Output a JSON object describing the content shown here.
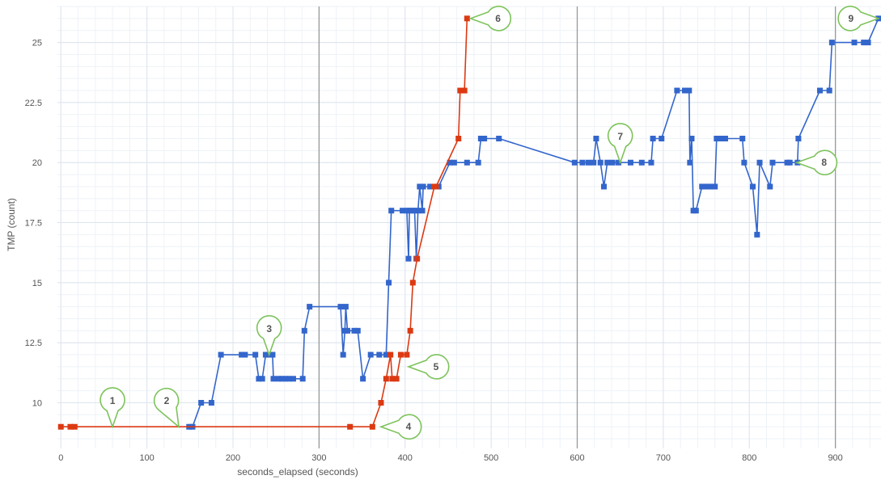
{
  "chart_data": {
    "type": "line",
    "title": "",
    "xlabel": "seconds_elapsed (seconds)",
    "ylabel": "TMP (count)",
    "xlim": [
      -4,
      953
    ],
    "ylim": [
      8.1,
      26.5
    ],
    "x_ticks": [
      0,
      100,
      200,
      300,
      400,
      500,
      600,
      700,
      800,
      900
    ],
    "y_ticks": [
      10,
      12.5,
      15,
      17.5,
      20,
      22.5,
      25
    ],
    "x_major_lines": [
      300,
      600,
      900
    ],
    "grid": true,
    "legend": "none",
    "series": [
      {
        "color": "#3366cc",
        "points": [
          [
            149,
            9
          ],
          [
            153,
            9
          ],
          [
            163,
            10
          ],
          [
            175,
            10
          ],
          [
            186,
            12
          ],
          [
            210,
            12
          ],
          [
            214,
            12
          ],
          [
            226,
            12
          ],
          [
            230,
            11
          ],
          [
            234,
            11
          ],
          [
            238,
            12
          ],
          [
            242,
            12
          ],
          [
            246,
            12
          ],
          [
            247,
            11
          ],
          [
            253,
            11
          ],
          [
            257,
            11
          ],
          [
            261,
            11
          ],
          [
            265,
            11
          ],
          [
            270,
            11
          ],
          [
            281,
            11
          ],
          [
            283,
            13
          ],
          [
            289,
            14
          ],
          [
            325,
            14
          ],
          [
            328,
            12
          ],
          [
            330,
            13
          ],
          [
            331,
            14
          ],
          [
            333,
            13
          ],
          [
            341,
            13
          ],
          [
            345,
            13
          ],
          [
            351,
            11
          ],
          [
            360,
            12
          ],
          [
            370,
            12
          ],
          [
            378,
            12
          ],
          [
            381,
            15
          ],
          [
            384,
            18
          ],
          [
            397,
            18
          ],
          [
            402,
            18
          ],
          [
            404,
            16
          ],
          [
            405,
            18
          ],
          [
            408,
            18
          ],
          [
            411,
            18
          ],
          [
            413,
            16
          ],
          [
            415,
            18
          ],
          [
            417,
            19
          ],
          [
            420,
            18
          ],
          [
            421,
            19
          ],
          [
            429,
            19
          ],
          [
            439,
            19
          ],
          [
            452,
            20
          ],
          [
            457,
            20
          ],
          [
            472,
            20
          ],
          [
            485,
            20
          ],
          [
            488,
            21
          ],
          [
            492,
            21
          ],
          [
            509,
            21
          ],
          [
            597,
            20
          ],
          [
            606,
            20
          ],
          [
            613,
            20
          ],
          [
            619,
            20
          ],
          [
            622,
            21
          ],
          [
            627,
            20
          ],
          [
            631,
            19
          ],
          [
            635,
            20
          ],
          [
            641,
            20
          ],
          [
            648,
            20
          ],
          [
            662,
            20
          ],
          [
            675,
            20
          ],
          [
            686,
            20
          ],
          [
            688,
            21
          ],
          [
            698,
            21
          ],
          [
            716,
            23
          ],
          [
            725,
            23
          ],
          [
            730,
            23
          ],
          [
            731,
            20
          ],
          [
            733,
            21
          ],
          [
            735,
            18
          ],
          [
            738,
            18
          ],
          [
            745,
            19
          ],
          [
            750,
            19
          ],
          [
            755,
            19
          ],
          [
            760,
            19
          ],
          [
            762,
            21
          ],
          [
            768,
            21
          ],
          [
            772,
            21
          ],
          [
            792,
            21
          ],
          [
            794,
            20
          ],
          [
            804,
            19
          ],
          [
            809,
            17
          ],
          [
            812,
            20
          ],
          [
            824,
            19
          ],
          [
            827,
            20
          ],
          [
            844,
            20
          ],
          [
            847,
            20
          ],
          [
            856,
            20
          ],
          [
            857,
            21
          ],
          [
            882,
            23
          ],
          [
            893,
            23
          ],
          [
            896,
            25
          ],
          [
            922,
            25
          ],
          [
            933,
            25
          ],
          [
            938,
            25
          ],
          [
            950,
            26
          ]
        ]
      },
      {
        "color": "#dc3912",
        "points": [
          [
            0,
            9
          ],
          [
            11,
            9
          ],
          [
            16,
            9
          ],
          [
            336,
            9
          ],
          [
            362,
            9
          ],
          [
            372,
            10
          ],
          [
            378,
            11
          ],
          [
            383,
            12
          ],
          [
            385,
            11
          ],
          [
            390,
            11
          ],
          [
            395,
            12
          ],
          [
            402,
            12
          ],
          [
            406,
            13
          ],
          [
            409,
            15
          ],
          [
            414,
            16
          ],
          [
            434,
            19
          ],
          [
            436,
            19
          ],
          [
            462,
            21
          ],
          [
            464,
            23
          ],
          [
            469,
            23
          ],
          [
            472,
            26
          ]
        ]
      }
    ],
    "annotations": [
      {
        "label": "1",
        "x": 60,
        "y": 9,
        "pointer": "down"
      },
      {
        "label": "2",
        "x": 137,
        "y": 9,
        "pointer": "down-right"
      },
      {
        "label": "3",
        "x": 242,
        "y": 12,
        "pointer": "down"
      },
      {
        "label": "4",
        "x": 372,
        "y": 9,
        "pointer": "left"
      },
      {
        "label": "5",
        "x": 404,
        "y": 11.5,
        "pointer": "left"
      },
      {
        "label": "6",
        "x": 476,
        "y": 26,
        "pointer": "left"
      },
      {
        "label": "7",
        "x": 650,
        "y": 20,
        "pointer": "down"
      },
      {
        "label": "8",
        "x": 855,
        "y": 20,
        "pointer": "left"
      },
      {
        "label": "9",
        "x": 950,
        "y": 26,
        "pointer": "right"
      }
    ],
    "annotation_style": {
      "stroke": "#7dc35b",
      "fill": "#ffffff"
    },
    "grid_colors": {
      "major": "#dde4ee",
      "minor": "#eef2f7",
      "emphasis": "#999999"
    }
  }
}
